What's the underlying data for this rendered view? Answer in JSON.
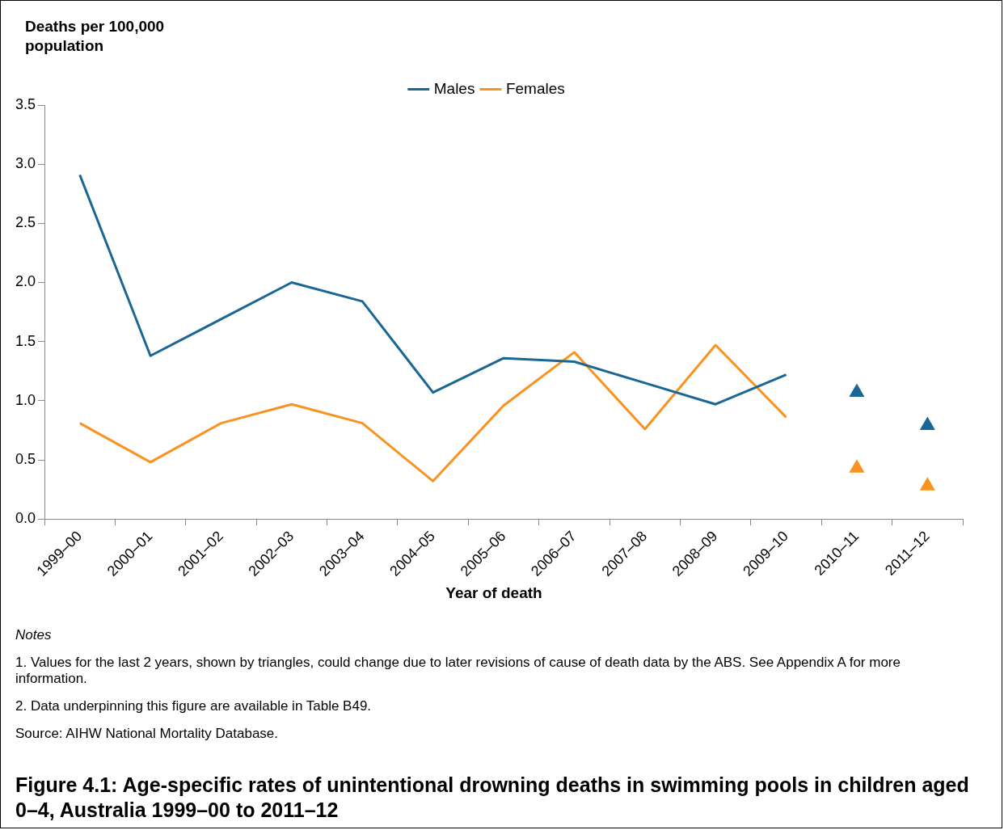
{
  "chart_data": {
    "type": "line",
    "title": "Figure 4.1: Age-specific rates of unintentional drowning deaths in swimming pools in children aged 0–4, Australia 1999–00 to 2011–12",
    "ylabel": "Deaths per 100,000 population",
    "xlabel": "Year of death",
    "categories": [
      "1999–00",
      "2000–01",
      "2001–02",
      "2002–03",
      "2003–04",
      "2004–05",
      "2005–06",
      "2006–07",
      "2007–08",
      "2008–09",
      "2009–10",
      "2010–11",
      "2011–12"
    ],
    "series": [
      {
        "name": "Males",
        "color": "#1a6796",
        "marker": "none",
        "values": [
          2.91,
          1.38,
          1.69,
          2.0,
          1.84,
          1.07,
          1.36,
          1.33,
          1.15,
          0.97,
          1.22,
          null,
          null
        ]
      },
      {
        "name": "Females",
        "color": "#f7931e",
        "marker": "none",
        "values": [
          0.81,
          0.48,
          0.81,
          0.97,
          0.81,
          0.32,
          0.96,
          1.41,
          0.76,
          1.47,
          0.86,
          null,
          null
        ]
      },
      {
        "color": "#1a6796",
        "type": "scatter",
        "marker": "triangle",
        "values": [
          null,
          null,
          null,
          null,
          null,
          null,
          null,
          null,
          null,
          null,
          null,
          1.07,
          0.79
        ]
      },
      {
        "color": "#f7931e",
        "type": "scatter",
        "marker": "triangle",
        "values": [
          null,
          null,
          null,
          null,
          null,
          null,
          null,
          null,
          null,
          null,
          null,
          0.43,
          0.28
        ]
      }
    ],
    "ylim": [
      0,
      3.5
    ],
    "yticks": [
      {
        "value": 0,
        "label": "0.0"
      },
      {
        "value": 0.5,
        "label": "0.5"
      },
      {
        "value": 1,
        "label": "1.0"
      },
      {
        "value": 1.5,
        "label": "1.5"
      },
      {
        "value": 2,
        "label": "2.0"
      },
      {
        "value": 2.5,
        "label": "2.5"
      },
      {
        "value": 3,
        "label": "3.0"
      },
      {
        "value": 3.5,
        "label": "3.5"
      }
    ],
    "grid": false,
    "legend": "top",
    "annotations": [
      "Notes",
      "1. Values for the last 2 years, shown by triangles, could change due to later revisions of cause of death data by the ABS. See Appendix A for more information.",
      "2. Data underpinning this figure are available in Table B49.",
      "Source: AIHW National Mortality Database."
    ]
  }
}
